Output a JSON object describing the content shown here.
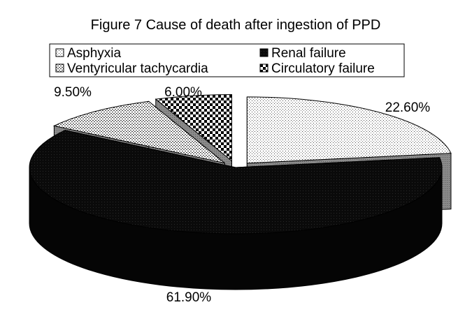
{
  "chart_data": {
    "type": "pie",
    "style": "3d-exploded",
    "title": "Figure 7 Cause of death after ingestion of PPD",
    "legend_position": "top",
    "slices": [
      {
        "label": "Asphyxia",
        "value": 22.6,
        "value_label": "22.60%",
        "pattern": "fine-dots"
      },
      {
        "label": "Renal failure",
        "value": 61.9,
        "value_label": "61.90%",
        "pattern": "dense-black"
      },
      {
        "label": "Ventyricular tachycardia",
        "value": 9.5,
        "value_label": "9.50%",
        "pattern": "light-dots"
      },
      {
        "label": "Circulatory failure",
        "value": 6.0,
        "value_label": "6.00%",
        "pattern": "checker"
      }
    ]
  }
}
